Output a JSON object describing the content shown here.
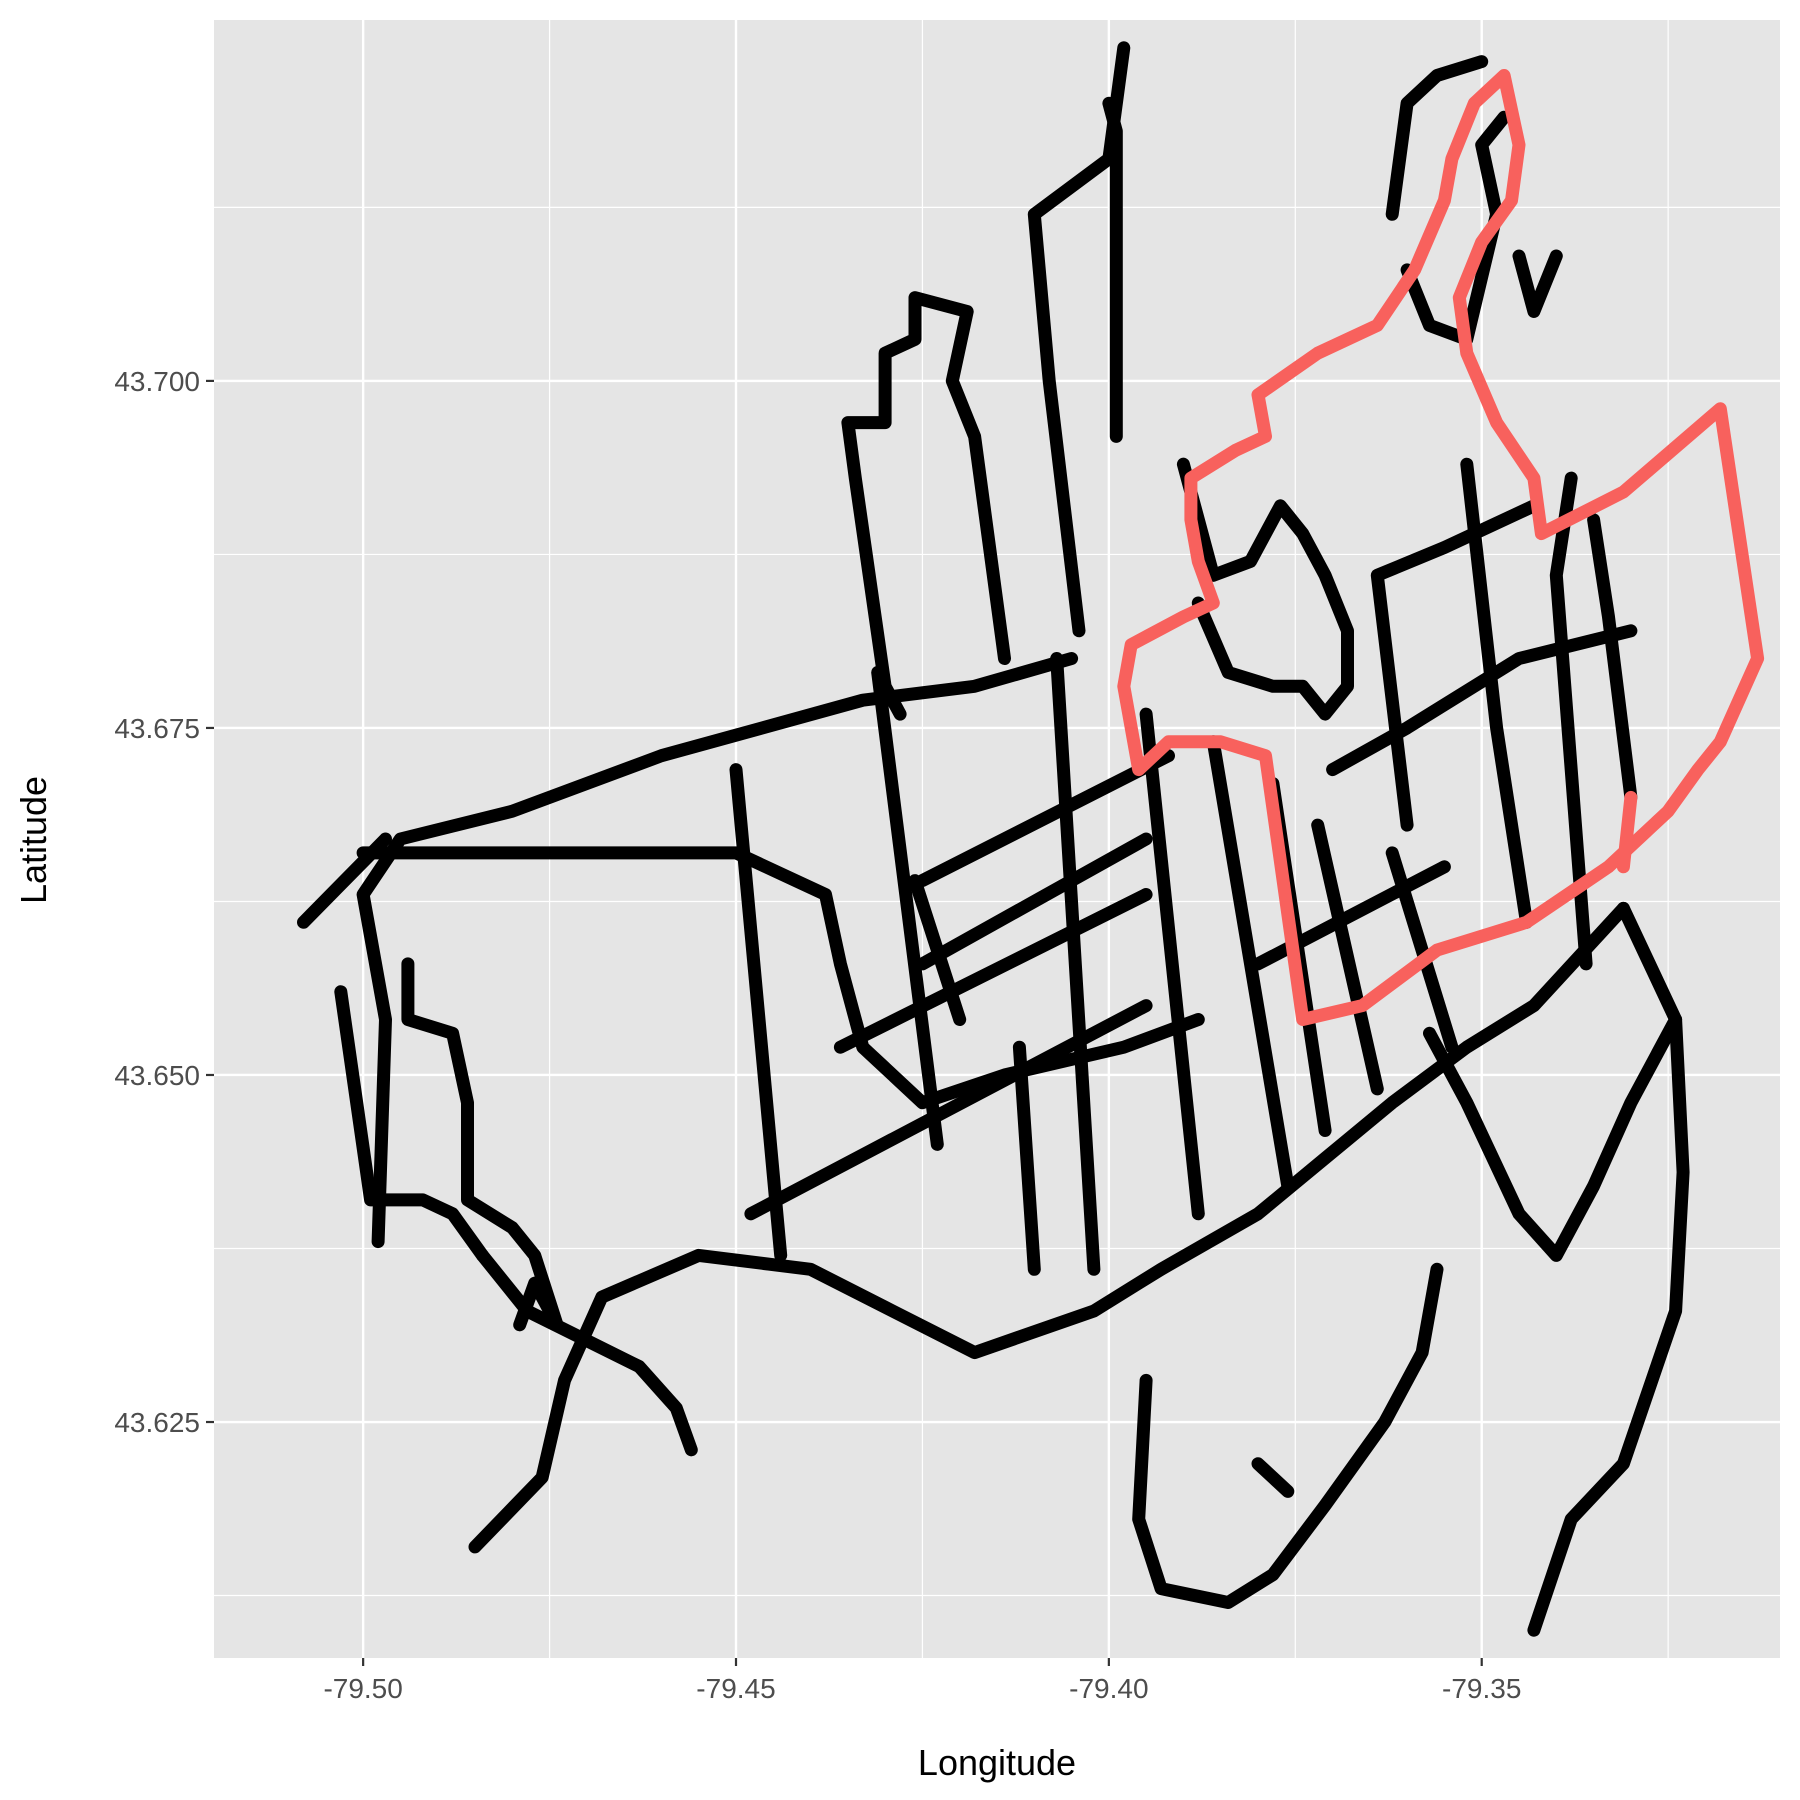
{
  "chart_data": {
    "type": "line",
    "title": "",
    "xlabel": "Longitude",
    "ylabel": "Latitude",
    "xlim": [
      -79.52,
      -79.31
    ],
    "ylim": [
      43.608,
      43.726
    ],
    "x_ticks": [
      {
        "value": -79.5,
        "label": "-79.50"
      },
      {
        "value": -79.45,
        "label": "-79.45"
      },
      {
        "value": -79.4,
        "label": "-79.40"
      },
      {
        "value": -79.35,
        "label": "-79.35"
      }
    ],
    "y_ticks": [
      {
        "value": 43.625,
        "label": "43.625"
      },
      {
        "value": 43.65,
        "label": "43.650"
      },
      {
        "value": 43.675,
        "label": "43.675"
      },
      {
        "value": 43.7,
        "label": "43.700"
      }
    ],
    "x_minor_ticks": [
      -79.475,
      -79.425,
      -79.375,
      -79.325
    ],
    "y_minor_ticks": [
      43.6125,
      43.6375,
      43.6625,
      43.6875,
      43.7125
    ],
    "grid": true,
    "legend": "none",
    "colors": {
      "panel": "#e5e5e5",
      "grid": "#ffffff",
      "black": "#000000",
      "highlight": "#f8615d"
    },
    "series": [
      {
        "color": "#000000",
        "points": [
          [
            -79.498,
            43.638
          ],
          [
            -79.497,
            43.654
          ],
          [
            -79.5,
            43.663
          ],
          [
            -79.495,
            43.667
          ],
          [
            -79.48,
            43.669
          ],
          [
            -79.46,
            43.673
          ],
          [
            -79.433,
            43.677
          ],
          [
            -79.418,
            43.678
          ],
          [
            -79.405,
            43.68
          ]
        ]
      },
      {
        "color": "#000000",
        "points": [
          [
            -79.5,
            43.666
          ],
          [
            -79.47,
            43.666
          ],
          [
            -79.45,
            43.666
          ],
          [
            -79.438,
            43.663
          ],
          [
            -79.436,
            43.658
          ],
          [
            -79.433,
            43.652
          ],
          [
            -79.425,
            43.648
          ],
          [
            -79.414,
            43.65
          ],
          [
            -79.398,
            43.652
          ],
          [
            -79.388,
            43.654
          ]
        ]
      },
      {
        "color": "#000000",
        "points": [
          [
            -79.508,
            43.661
          ],
          [
            -79.497,
            43.667
          ]
        ]
      },
      {
        "color": "#000000",
        "points": [
          [
            -79.494,
            43.658
          ],
          [
            -79.494,
            43.654
          ],
          [
            -79.488,
            43.653
          ],
          [
            -79.486,
            43.648
          ],
          [
            -79.486,
            43.641
          ],
          [
            -79.48,
            43.639
          ],
          [
            -79.477,
            43.637
          ],
          [
            -79.474,
            43.632
          ],
          [
            -79.477,
            43.635
          ],
          [
            -79.479,
            43.632
          ]
        ]
      },
      {
        "color": "#000000",
        "points": [
          [
            -79.503,
            43.656
          ],
          [
            -79.499,
            43.641
          ],
          [
            -79.492,
            43.641
          ],
          [
            -79.488,
            43.64
          ],
          [
            -79.484,
            43.637
          ]
        ]
      },
      {
        "color": "#000000",
        "points": [
          [
            -79.484,
            43.637
          ],
          [
            -79.478,
            43.633
          ],
          [
            -79.463,
            43.629
          ],
          [
            -79.458,
            43.626
          ],
          [
            -79.456,
            43.623
          ]
        ]
      },
      {
        "color": "#000000",
        "points": [
          [
            -79.485,
            43.616
          ],
          [
            -79.476,
            43.621
          ],
          [
            -79.473,
            43.628
          ],
          [
            -79.468,
            43.634
          ],
          [
            -79.455,
            43.637
          ],
          [
            -79.44,
            43.636
          ],
          [
            -79.429,
            43.633
          ],
          [
            -79.418,
            43.63
          ],
          [
            -79.402,
            43.633
          ],
          [
            -79.393,
            43.636
          ],
          [
            -79.38,
            43.64
          ],
          [
            -79.371,
            43.644
          ],
          [
            -79.362,
            43.648
          ],
          [
            -79.352,
            43.652
          ],
          [
            -79.343,
            43.655
          ],
          [
            -79.331,
            43.662
          ]
        ]
      },
      {
        "color": "#000000",
        "points": [
          [
            -79.331,
            43.662
          ],
          [
            -79.324,
            43.654
          ],
          [
            -79.323,
            43.643
          ],
          [
            -79.324,
            43.633
          ],
          [
            -79.331,
            43.622
          ],
          [
            -79.338,
            43.618
          ],
          [
            -79.343,
            43.61
          ]
        ]
      },
      {
        "color": "#000000",
        "points": [
          [
            -79.324,
            43.654
          ],
          [
            -79.33,
            43.648
          ],
          [
            -79.335,
            43.642
          ],
          [
            -79.34,
            43.637
          ],
          [
            -79.345,
            43.64
          ],
          [
            -79.352,
            43.648
          ],
          [
            -79.357,
            43.653
          ]
        ]
      },
      {
        "color": "#000000",
        "points": [
          [
            -79.395,
            43.628
          ],
          [
            -79.396,
            43.618
          ],
          [
            -79.393,
            43.613
          ],
          [
            -79.384,
            43.612
          ],
          [
            -79.378,
            43.614
          ],
          [
            -79.371,
            43.619
          ],
          [
            -79.363,
            43.625
          ],
          [
            -79.358,
            43.63
          ],
          [
            -79.356,
            43.636
          ]
        ]
      },
      {
        "color": "#000000",
        "points": [
          [
            -79.376,
            43.62
          ],
          [
            -79.38,
            43.622
          ]
        ]
      },
      {
        "color": "#000000",
        "points": [
          [
            -79.444,
            43.637
          ],
          [
            -79.45,
            43.672
          ]
        ]
      },
      {
        "color": "#000000",
        "points": [
          [
            -79.423,
            43.645
          ],
          [
            -79.431,
            43.679
          ]
        ]
      },
      {
        "color": "#000000",
        "points": [
          [
            -79.402,
            43.636
          ],
          [
            -79.407,
            43.68
          ]
        ]
      },
      {
        "color": "#000000",
        "points": [
          [
            -79.388,
            43.64
          ],
          [
            -79.395,
            43.676
          ]
        ]
      },
      {
        "color": "#000000",
        "points": [
          [
            -79.376,
            43.642
          ],
          [
            -79.386,
            43.674
          ]
        ]
      },
      {
        "color": "#000000",
        "points": [
          [
            -79.371,
            43.646
          ],
          [
            -79.378,
            43.671
          ]
        ]
      },
      {
        "color": "#000000",
        "points": [
          [
            -79.364,
            43.649
          ],
          [
            -79.372,
            43.668
          ]
        ]
      },
      {
        "color": "#000000",
        "points": [
          [
            -79.354,
            43.652
          ],
          [
            -79.362,
            43.666
          ]
        ]
      },
      {
        "color": "#000000",
        "points": [
          [
            -79.41,
            43.636
          ],
          [
            -79.412,
            43.652
          ]
        ]
      },
      {
        "color": "#000000",
        "points": [
          [
            -79.42,
            43.654
          ],
          [
            -79.426,
            43.664
          ]
        ]
      },
      {
        "color": "#000000",
        "points": [
          [
            -79.448,
            43.64
          ],
          [
            -79.395,
            43.655
          ]
        ]
      },
      {
        "color": "#000000",
        "points": [
          [
            -79.436,
            43.652
          ],
          [
            -79.395,
            43.663
          ]
        ]
      },
      {
        "color": "#000000",
        "points": [
          [
            -79.425,
            43.664
          ],
          [
            -79.392,
            43.673
          ]
        ]
      },
      {
        "color": "#000000",
        "points": [
          [
            -79.425,
            43.658
          ],
          [
            -79.395,
            43.667
          ]
        ]
      },
      {
        "color": "#000000",
        "points": [
          [
            -79.38,
            43.658
          ],
          [
            -79.355,
            43.665
          ]
        ]
      },
      {
        "color": "#000000",
        "points": [
          [
            -79.37,
            43.672
          ],
          [
            -79.36,
            43.675
          ],
          [
            -79.345,
            43.68
          ],
          [
            -79.33,
            43.682
          ]
        ]
      },
      {
        "color": "#000000",
        "points": [
          [
            -79.36,
            43.668
          ],
          [
            -79.364,
            43.686
          ],
          [
            -79.355,
            43.688
          ],
          [
            -79.343,
            43.691
          ]
        ]
      },
      {
        "color": "#000000",
        "points": [
          [
            -79.344,
            43.661
          ],
          [
            -79.348,
            43.675
          ],
          [
            -79.352,
            43.694
          ]
        ]
      },
      {
        "color": "#000000",
        "points": [
          [
            -79.336,
            43.658
          ],
          [
            -79.34,
            43.686
          ],
          [
            -79.338,
            43.693
          ]
        ]
      },
      {
        "color": "#000000",
        "points": [
          [
            -79.33,
            43.67
          ],
          [
            -79.333,
            43.683
          ],
          [
            -79.335,
            43.69
          ]
        ]
      },
      {
        "color": "#000000",
        "points": [
          [
            -79.399,
            43.696
          ],
          [
            -79.399,
            43.718
          ],
          [
            -79.4,
            43.72
          ]
        ]
      },
      {
        "color": "#000000",
        "points": [
          [
            -79.404,
            43.682
          ],
          [
            -79.408,
            43.7
          ],
          [
            -79.41,
            43.712
          ],
          [
            -79.4,
            43.716
          ],
          [
            -79.398,
            43.724
          ]
        ]
      },
      {
        "color": "#000000",
        "points": [
          [
            -79.414,
            43.68
          ],
          [
            -79.418,
            43.696
          ],
          [
            -79.421,
            43.7
          ],
          [
            -79.419,
            43.705
          ],
          [
            -79.426,
            43.706
          ],
          [
            -79.426,
            43.703
          ],
          [
            -79.43,
            43.702
          ],
          [
            -79.43,
            43.697
          ],
          [
            -79.435,
            43.697
          ],
          [
            -79.434,
            43.693
          ],
          [
            -79.43,
            43.678
          ],
          [
            -79.428,
            43.676
          ]
        ]
      },
      {
        "color": "#000000",
        "points": [
          [
            -79.39,
            43.694
          ],
          [
            -79.386,
            43.686
          ],
          [
            -79.381,
            43.687
          ],
          [
            -79.377,
            43.691
          ],
          [
            -79.374,
            43.689
          ],
          [
            -79.371,
            43.686
          ],
          [
            -79.368,
            43.682
          ],
          [
            -79.368,
            43.678
          ],
          [
            -79.371,
            43.676
          ],
          [
            -79.374,
            43.678
          ],
          [
            -79.378,
            43.678
          ],
          [
            -79.384,
            43.679
          ],
          [
            -79.388,
            43.684
          ]
        ]
      },
      {
        "color": "#000000",
        "points": [
          [
            -79.36,
            43.708
          ],
          [
            -79.357,
            43.704
          ],
          [
            -79.352,
            43.703
          ],
          [
            -79.348,
            43.712
          ],
          [
            -79.35,
            43.717
          ],
          [
            -79.347,
            43.719
          ]
        ]
      },
      {
        "color": "#000000",
        "points": [
          [
            -79.345,
            43.709
          ],
          [
            -79.343,
            43.705
          ],
          [
            -79.34,
            43.709
          ]
        ]
      },
      {
        "color": "#000000",
        "points": [
          [
            -79.362,
            43.712
          ],
          [
            -79.36,
            43.72
          ],
          [
            -79.356,
            43.722
          ],
          [
            -79.35,
            43.723
          ]
        ]
      }
    ],
    "highlight_series": [
      {
        "color": "#f8615d",
        "points": [
          [
            -79.398,
            43.678
          ],
          [
            -79.397,
            43.681
          ],
          [
            -79.39,
            43.683
          ],
          [
            -79.386,
            43.684
          ],
          [
            -79.388,
            43.687
          ],
          [
            -79.389,
            43.69
          ],
          [
            -79.389,
            43.693
          ],
          [
            -79.383,
            43.695
          ],
          [
            -79.379,
            43.696
          ],
          [
            -79.38,
            43.699
          ],
          [
            -79.372,
            43.702
          ],
          [
            -79.364,
            43.704
          ],
          [
            -79.359,
            43.708
          ],
          [
            -79.355,
            43.713
          ],
          [
            -79.354,
            43.716
          ],
          [
            -79.351,
            43.72
          ],
          [
            -79.347,
            43.722
          ],
          [
            -79.345,
            43.717
          ],
          [
            -79.346,
            43.713
          ],
          [
            -79.35,
            43.71
          ],
          [
            -79.353,
            43.706
          ],
          [
            -79.352,
            43.702
          ],
          [
            -79.348,
            43.697
          ],
          [
            -79.343,
            43.693
          ],
          [
            -79.342,
            43.689
          ],
          [
            -79.331,
            43.692
          ],
          [
            -79.318,
            43.698
          ],
          [
            -79.313,
            43.68
          ],
          [
            -79.318,
            43.674
          ],
          [
            -79.321,
            43.672
          ],
          [
            -79.325,
            43.669
          ],
          [
            -79.333,
            43.665
          ],
          [
            -79.344,
            43.661
          ],
          [
            -79.356,
            43.659
          ],
          [
            -79.366,
            43.655
          ],
          [
            -79.374,
            43.654
          ],
          [
            -79.379,
            43.673
          ],
          [
            -79.385,
            43.674
          ],
          [
            -79.392,
            43.674
          ],
          [
            -79.396,
            43.672
          ],
          [
            -79.398,
            43.678
          ]
        ]
      },
      {
        "color": "#f8615d",
        "points": [
          [
            -79.33,
            43.67
          ],
          [
            -79.331,
            43.665
          ]
        ]
      }
    ]
  }
}
